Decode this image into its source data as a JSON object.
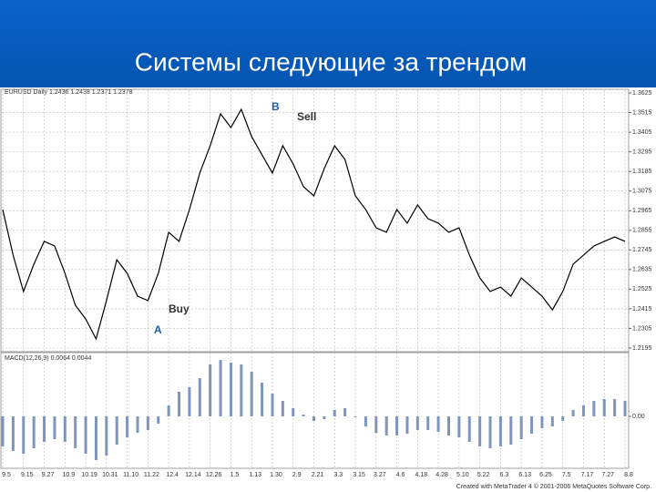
{
  "slide_title": "Системы следующие за трендом",
  "footer": "Created with MetaTrader 4 © 2001-2006 MetaQuotes Software Corp.",
  "chart_data": [
    {
      "type": "line",
      "title": "EURUSD Daily 1.2436 1.2438 1.2371 1.2378",
      "categories": [
        "9.5",
        null,
        "9.15",
        null,
        "9.27",
        null,
        "10.9",
        null,
        "10.19",
        null,
        "10.31",
        null,
        "11.10",
        null,
        "11.22",
        null,
        "12.4",
        null,
        "12.14",
        null,
        "12.26",
        null,
        "1.5",
        null,
        "1.13",
        null,
        "1.30",
        null,
        "2.9",
        null,
        "2.21",
        null,
        "3.3",
        null,
        "3.15",
        null,
        "3.27",
        null,
        "4.6",
        null,
        "4.18",
        null,
        "4.28",
        null,
        "5.10",
        null,
        "5.22",
        null,
        "6.3",
        null,
        "6.13",
        null,
        "6.25",
        null,
        "7.5",
        null,
        "7.17",
        null,
        "7.27",
        null,
        "8.8"
      ],
      "values": [
        1.2971,
        1.2716,
        1.2512,
        1.2665,
        1.2793,
        1.2767,
        1.2614,
        1.2435,
        1.2358,
        1.2246,
        1.2461,
        1.269,
        1.2614,
        1.2486,
        1.2461,
        1.2614,
        1.2844,
        1.2793,
        1.2971,
        1.3176,
        1.3329,
        1.3508,
        1.3431,
        1.3533,
        1.338,
        1.3278,
        1.3176,
        1.3329,
        1.3227,
        1.3099,
        1.3048,
        1.3201,
        1.3329,
        1.3252,
        1.3048,
        1.2971,
        1.2869,
        1.2844,
        1.2971,
        1.2895,
        1.2997,
        1.292,
        1.2895,
        1.2844,
        1.2869,
        1.2716,
        1.2588,
        1.2512,
        1.2537,
        1.2486,
        1.2588,
        1.2537,
        1.2486,
        1.2409,
        1.2512,
        1.2665,
        1.2716,
        1.2767,
        1.2793,
        1.2818,
        1.2793
      ],
      "color": "#000000",
      "ylim": [
        1.2195,
        1.3625
      ],
      "yticks": [
        1.3625,
        1.3515,
        1.3405,
        1.3295,
        1.3185,
        1.3075,
        1.2965,
        1.2855,
        1.2745,
        1.2635,
        1.2525,
        1.2415,
        1.2305,
        1.2195
      ],
      "grid": true,
      "annotations": [
        "B",
        "Sell",
        "Buy",
        "A"
      ]
    },
    {
      "type": "bar",
      "title": "MACD(12,26,9) 0.0064 0.0044",
      "values": [
        -0.0066,
        -0.0076,
        -0.0082,
        -0.007,
        -0.0056,
        -0.005,
        -0.0056,
        -0.007,
        -0.0082,
        -0.0096,
        -0.0086,
        -0.0062,
        -0.0046,
        -0.0036,
        -0.003,
        -0.0016,
        0.0024,
        0.0054,
        0.0064,
        0.0084,
        0.0114,
        0.0124,
        0.0118,
        0.0114,
        0.0098,
        0.0074,
        0.005,
        0.0034,
        0.0018,
        0.0004,
        -0.001,
        -0.0006,
        0.0014,
        0.0018,
        -0.0002,
        -0.0022,
        -0.0036,
        -0.0042,
        -0.0042,
        -0.0038,
        -0.003,
        -0.003,
        -0.0034,
        -0.0042,
        -0.0046,
        -0.0056,
        -0.0066,
        -0.007,
        -0.0066,
        -0.0062,
        -0.005,
        -0.0038,
        -0.0026,
        -0.0022,
        -0.001,
        0.0014,
        0.0024,
        0.0034,
        0.0038,
        0.0038,
        0.0034
      ],
      "color": "#7f95bd",
      "ylim": [
        -0.011,
        0.0138
      ],
      "yticks": [
        {
          "value": 0,
          "label": "0.00"
        }
      ]
    }
  ]
}
